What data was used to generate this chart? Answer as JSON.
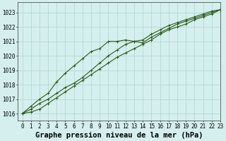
{
  "title": "Graphe pression niveau de la mer (hPa)",
  "xlim": [
    -0.5,
    23
  ],
  "ylim": [
    1015.5,
    1023.7
  ],
  "yticks": [
    1016,
    1017,
    1018,
    1019,
    1020,
    1021,
    1022,
    1023
  ],
  "xticks": [
    0,
    1,
    2,
    3,
    4,
    5,
    6,
    7,
    8,
    9,
    10,
    11,
    12,
    13,
    14,
    15,
    16,
    17,
    18,
    19,
    20,
    21,
    22,
    23
  ],
  "bg_color": "#d4efed",
  "grid_color": "#aed4d0",
  "line_color": "#2d5a1b",
  "series1": [
    1016.0,
    1016.3,
    1016.7,
    1017.0,
    1017.4,
    1017.8,
    1018.1,
    1018.5,
    1019.0,
    1019.5,
    1020.0,
    1020.4,
    1020.8,
    1021.0,
    1021.1,
    1021.5,
    1021.8,
    1022.1,
    1022.3,
    1022.5,
    1022.7,
    1022.9,
    1023.1,
    1023.2
  ],
  "series2": [
    1016.0,
    1016.5,
    1017.0,
    1017.4,
    1018.2,
    1018.8,
    1019.3,
    1019.8,
    1020.3,
    1020.5,
    1021.0,
    1021.0,
    1021.1,
    1021.0,
    1020.9,
    1021.3,
    1021.6,
    1021.9,
    1022.2,
    1022.4,
    1022.6,
    1022.8,
    1023.0,
    1023.2
  ],
  "series3": [
    1016.0,
    1016.1,
    1016.3,
    1016.7,
    1017.1,
    1017.5,
    1017.9,
    1018.3,
    1018.7,
    1019.1,
    1019.5,
    1019.9,
    1020.2,
    1020.5,
    1020.8,
    1021.1,
    1021.5,
    1021.8,
    1022.0,
    1022.2,
    1022.5,
    1022.7,
    1022.9,
    1023.2
  ],
  "title_fontsize": 7.5,
  "tick_fontsize": 5.5
}
